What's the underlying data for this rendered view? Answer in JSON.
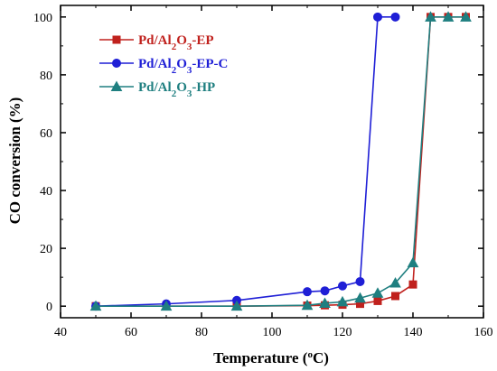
{
  "chart_data": {
    "type": "line",
    "xlabel": "Temperature (oC)",
    "xlabel_parts": [
      "Temperature (",
      "o",
      "C)"
    ],
    "ylabel": "CO conversion (%)",
    "xlim": [
      40,
      160
    ],
    "ylim": [
      -4,
      104
    ],
    "xticks": [
      40,
      60,
      80,
      100,
      120,
      140,
      160
    ],
    "yticks": [
      0,
      20,
      40,
      60,
      80,
      100
    ],
    "legend_position": "top-left",
    "series": [
      {
        "name": "Pd/Al2O3-EP",
        "name_parts": [
          "Pd/Al",
          "2",
          "O",
          "3",
          "-EP"
        ],
        "color": "#c0211d",
        "marker": "square",
        "x": [
          50,
          70,
          90,
          110,
          115,
          120,
          125,
          130,
          135,
          140,
          145,
          150,
          155
        ],
        "y": [
          0,
          0,
          0,
          0.2,
          0.3,
          0.5,
          0.8,
          1.8,
          3.5,
          7.5,
          100,
          100,
          100
        ]
      },
      {
        "name": "Pd/Al2O3-EP-C",
        "name_parts": [
          "Pd/Al",
          "2",
          "O",
          "3",
          "-EP-C"
        ],
        "color": "#1f1fd6",
        "marker": "circle",
        "x": [
          50,
          70,
          90,
          110,
          115,
          120,
          125,
          130,
          135
        ],
        "y": [
          0,
          0.8,
          2,
          5,
          5.3,
          7,
          8.5,
          100,
          100
        ]
      },
      {
        "name": "Pd/Al2O3-HP",
        "name_parts": [
          "Pd/Al",
          "2",
          "O",
          "3",
          "-HP"
        ],
        "color": "#1f7f80",
        "marker": "triangle",
        "x": [
          50,
          70,
          90,
          110,
          115,
          120,
          125,
          130,
          135,
          140,
          145,
          150,
          155
        ],
        "y": [
          0,
          0,
          0,
          0.3,
          1,
          1.5,
          2.8,
          4.5,
          8,
          15,
          100,
          100,
          100
        ]
      }
    ]
  }
}
